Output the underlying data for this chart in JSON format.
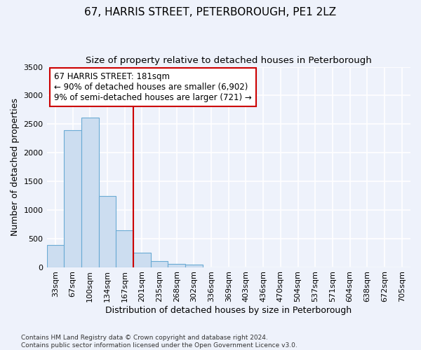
{
  "title": "67, HARRIS STREET, PETERBOROUGH, PE1 2LZ",
  "subtitle": "Size of property relative to detached houses in Peterborough",
  "xlabel": "Distribution of detached houses by size in Peterborough",
  "ylabel": "Number of detached properties",
  "footnote": "Contains HM Land Registry data © Crown copyright and database right 2024.\nContains public sector information licensed under the Open Government Licence v3.0.",
  "bar_labels": [
    "33sqm",
    "67sqm",
    "100sqm",
    "134sqm",
    "167sqm",
    "201sqm",
    "235sqm",
    "268sqm",
    "302sqm",
    "336sqm",
    "369sqm",
    "403sqm",
    "436sqm",
    "470sqm",
    "504sqm",
    "537sqm",
    "571sqm",
    "604sqm",
    "638sqm",
    "672sqm",
    "705sqm"
  ],
  "bar_values": [
    390,
    2390,
    2610,
    1240,
    640,
    250,
    100,
    55,
    45,
    0,
    0,
    0,
    0,
    0,
    0,
    0,
    0,
    0,
    0,
    0,
    0
  ],
  "bar_color": "#ccddf0",
  "bar_edge_color": "#6aaad4",
  "vline_color": "#cc0000",
  "annotation_title": "67 HARRIS STREET: 181sqm",
  "annotation_line1": "← 90% of detached houses are smaller (6,902)",
  "annotation_line2": "9% of semi-detached houses are larger (721) →",
  "ylim": [
    0,
    3500
  ],
  "yticks": [
    0,
    500,
    1000,
    1500,
    2000,
    2500,
    3000,
    3500
  ],
  "background_color": "#eef2fb",
  "plot_bg_color": "#eef2fb",
  "grid_color": "#ffffff",
  "title_fontsize": 11,
  "subtitle_fontsize": 9.5,
  "axis_label_fontsize": 9,
  "tick_fontsize": 8,
  "annot_fontsize": 8.5,
  "footnote_fontsize": 6.5
}
